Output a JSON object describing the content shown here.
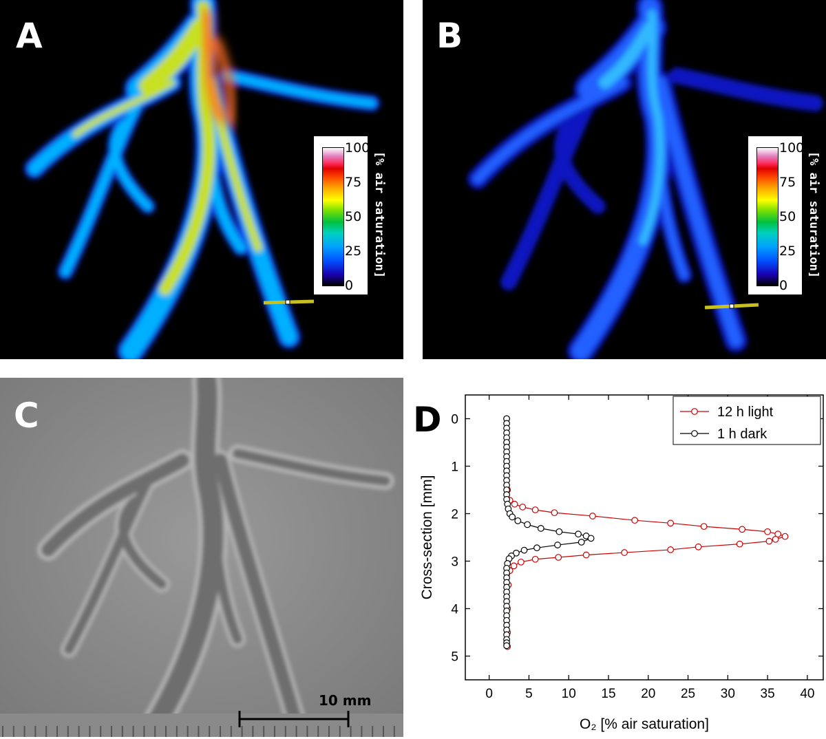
{
  "panels": {
    "a": {
      "letter": "A"
    },
    "b": {
      "letter": "B"
    },
    "c": {
      "letter": "C",
      "scalebar_label": "10 mm"
    },
    "d": {
      "letter": "D"
    }
  },
  "colorbar": {
    "label": "[% air saturation]",
    "ticks": [
      "100",
      "75",
      "50",
      "25",
      "0"
    ],
    "colors": [
      "#000000",
      "#1a00b0",
      "#0050ff",
      "#00a0ff",
      "#00d0c0",
      "#00c040",
      "#80e000",
      "#ffff00",
      "#ffb000",
      "#ff5000",
      "#e00000",
      "#ff3060",
      "#e080c0",
      "#ffffff"
    ]
  },
  "colors": {
    "light_series": "#cc0000",
    "dark_series": "#000000",
    "panel_c_background": "#8c8c8c"
  },
  "chart_data": {
    "type": "line",
    "orientation": "profile (O2 on x, depth on y)",
    "xlabel": "O₂ [% air saturation]",
    "ylabel": "Cross-section [mm]",
    "xlim": [
      -3,
      42
    ],
    "ylim": [
      5.5,
      -0.5
    ],
    "y_inverted": true,
    "xticks": [
      0,
      5,
      10,
      15,
      20,
      25,
      30,
      35,
      40
    ],
    "yticks": [
      0,
      1,
      2,
      3,
      4,
      5
    ],
    "grid": false,
    "legend_position": "top-right",
    "series": [
      {
        "name": "12 h light",
        "color": "#cc0000",
        "marker": "open-circle",
        "points": [
          [
            2.2,
            0.0
          ],
          [
            2.2,
            0.5
          ],
          [
            2.2,
            1.0
          ],
          [
            2.3,
            1.5
          ],
          [
            2.6,
            1.72
          ],
          [
            3.2,
            1.8
          ],
          [
            4.2,
            1.86
          ],
          [
            5.8,
            1.92
          ],
          [
            8.2,
            1.98
          ],
          [
            13.0,
            2.05
          ],
          [
            18.3,
            2.14
          ],
          [
            22.8,
            2.2
          ],
          [
            27.0,
            2.27
          ],
          [
            31.8,
            2.33
          ],
          [
            35.0,
            2.38
          ],
          [
            36.3,
            2.43
          ],
          [
            37.2,
            2.48
          ],
          [
            36.0,
            2.54
          ],
          [
            35.2,
            2.58
          ],
          [
            31.5,
            2.64
          ],
          [
            26.3,
            2.7
          ],
          [
            22.8,
            2.76
          ],
          [
            17.0,
            2.82
          ],
          [
            12.2,
            2.87
          ],
          [
            8.7,
            2.92
          ],
          [
            5.8,
            2.96
          ],
          [
            4.0,
            3.02
          ],
          [
            3.1,
            3.1
          ],
          [
            2.6,
            3.2
          ],
          [
            2.4,
            3.5
          ],
          [
            2.3,
            4.0
          ],
          [
            2.3,
            4.5
          ],
          [
            2.3,
            4.8
          ]
        ]
      },
      {
        "name": "1 h dark",
        "color": "#000000",
        "marker": "open-circle",
        "points": [
          [
            2.2,
            0.0
          ],
          [
            2.2,
            0.1
          ],
          [
            2.2,
            0.2
          ],
          [
            2.2,
            0.3
          ],
          [
            2.2,
            0.4
          ],
          [
            2.2,
            0.5
          ],
          [
            2.2,
            0.6
          ],
          [
            2.2,
            0.7
          ],
          [
            2.2,
            0.8
          ],
          [
            2.2,
            0.9
          ],
          [
            2.2,
            1.0
          ],
          [
            2.2,
            1.1
          ],
          [
            2.2,
            1.2
          ],
          [
            2.2,
            1.3
          ],
          [
            2.2,
            1.4
          ],
          [
            2.2,
            1.5
          ],
          [
            2.2,
            1.6
          ],
          [
            2.2,
            1.7
          ],
          [
            2.3,
            1.8
          ],
          [
            2.4,
            1.9
          ],
          [
            2.6,
            2.0
          ],
          [
            2.9,
            2.07
          ],
          [
            3.6,
            2.15
          ],
          [
            4.8,
            2.23
          ],
          [
            6.5,
            2.31
          ],
          [
            8.8,
            2.38
          ],
          [
            11.2,
            2.43
          ],
          [
            12.2,
            2.47
          ],
          [
            12.8,
            2.52
          ],
          [
            11.6,
            2.6
          ],
          [
            8.6,
            2.66
          ],
          [
            6.0,
            2.72
          ],
          [
            4.4,
            2.77
          ],
          [
            3.4,
            2.83
          ],
          [
            2.8,
            2.89
          ],
          [
            2.5,
            2.95
          ],
          [
            2.3,
            3.05
          ],
          [
            2.2,
            3.15
          ],
          [
            2.2,
            3.25
          ],
          [
            2.2,
            3.35
          ],
          [
            2.2,
            3.45
          ],
          [
            2.2,
            3.55
          ],
          [
            2.2,
            3.65
          ],
          [
            2.2,
            3.75
          ],
          [
            2.2,
            3.85
          ],
          [
            2.2,
            3.95
          ],
          [
            2.2,
            4.05
          ],
          [
            2.2,
            4.15
          ],
          [
            2.2,
            4.25
          ],
          [
            2.2,
            4.35
          ],
          [
            2.2,
            4.45
          ],
          [
            2.2,
            4.55
          ],
          [
            2.2,
            4.65
          ],
          [
            2.2,
            4.72
          ],
          [
            2.2,
            4.78
          ]
        ]
      }
    ]
  }
}
